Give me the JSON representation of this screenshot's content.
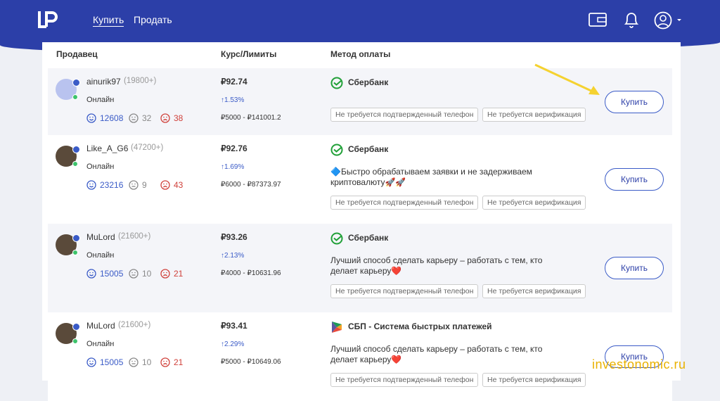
{
  "header": {
    "nav": [
      "Купить",
      "Продать"
    ]
  },
  "table": {
    "columns": [
      "Продавец",
      "Курс/Лимиты",
      "Метод оплаты"
    ],
    "rows": [
      {
        "seller": "ainurik97",
        "rating": "(19800+)",
        "status": "Онлайн",
        "positive": 12608,
        "neutral": 32,
        "negative": 38,
        "price": "₽92.74",
        "change": "↑1.53%",
        "limits": "₽5000 - ₽141001.2",
        "method": "Сбербанк",
        "tags": [
          "Не требуется подтвержденный телефон",
          "Не требуется верификация"
        ],
        "button": "Купить"
      },
      {
        "seller": "Like_A_G6",
        "rating": "(47200+)",
        "status": "Онлайн",
        "positive": 23216,
        "neutral": 9,
        "negative": 43,
        "price": "₽92.76",
        "change": "↑1.69%",
        "limits": "₽6000 - ₽87373.97",
        "method": "Сбербанк",
        "description": "🔷Быстро обрабатываем заявки и не задерживаем криптовалюту🚀🚀",
        "tags": [
          "Не требуется подтвержденный телефон",
          "Не требуется верификация"
        ],
        "button": "Купить"
      },
      {
        "seller": "MuLord",
        "rating": "(21600+)",
        "status": "Онлайн",
        "positive": 15005,
        "neutral": 10,
        "negative": 21,
        "price": "₽93.26",
        "change": "↑2.13%",
        "limits": "₽4000 - ₽10631.96",
        "method": "Сбербанк",
        "description": "Лучший способ сделать карьеру – работать с тем, кто делает карьеру❤️",
        "tags": [
          "Не требуется подтвержденный телефон",
          "Не требуется верификация"
        ],
        "button": "Купить"
      },
      {
        "seller": "MuLord",
        "rating": "(21600+)",
        "status": "Онлайн",
        "positive": 15005,
        "neutral": 10,
        "negative": 21,
        "price": "₽93.41",
        "change": "↑2.29%",
        "limits": "₽5000 - ₽10649.06",
        "method": "СБП - Система быстрых платежей",
        "description": "Лучший способ сделать карьеру – работать с тем, кто делает карьеру❤️",
        "tags": [
          "Не требуется подтвержденный телефон",
          "Не требуется верификация"
        ],
        "button": "Купить"
      }
    ]
  },
  "watermark": "investonomic.ru"
}
